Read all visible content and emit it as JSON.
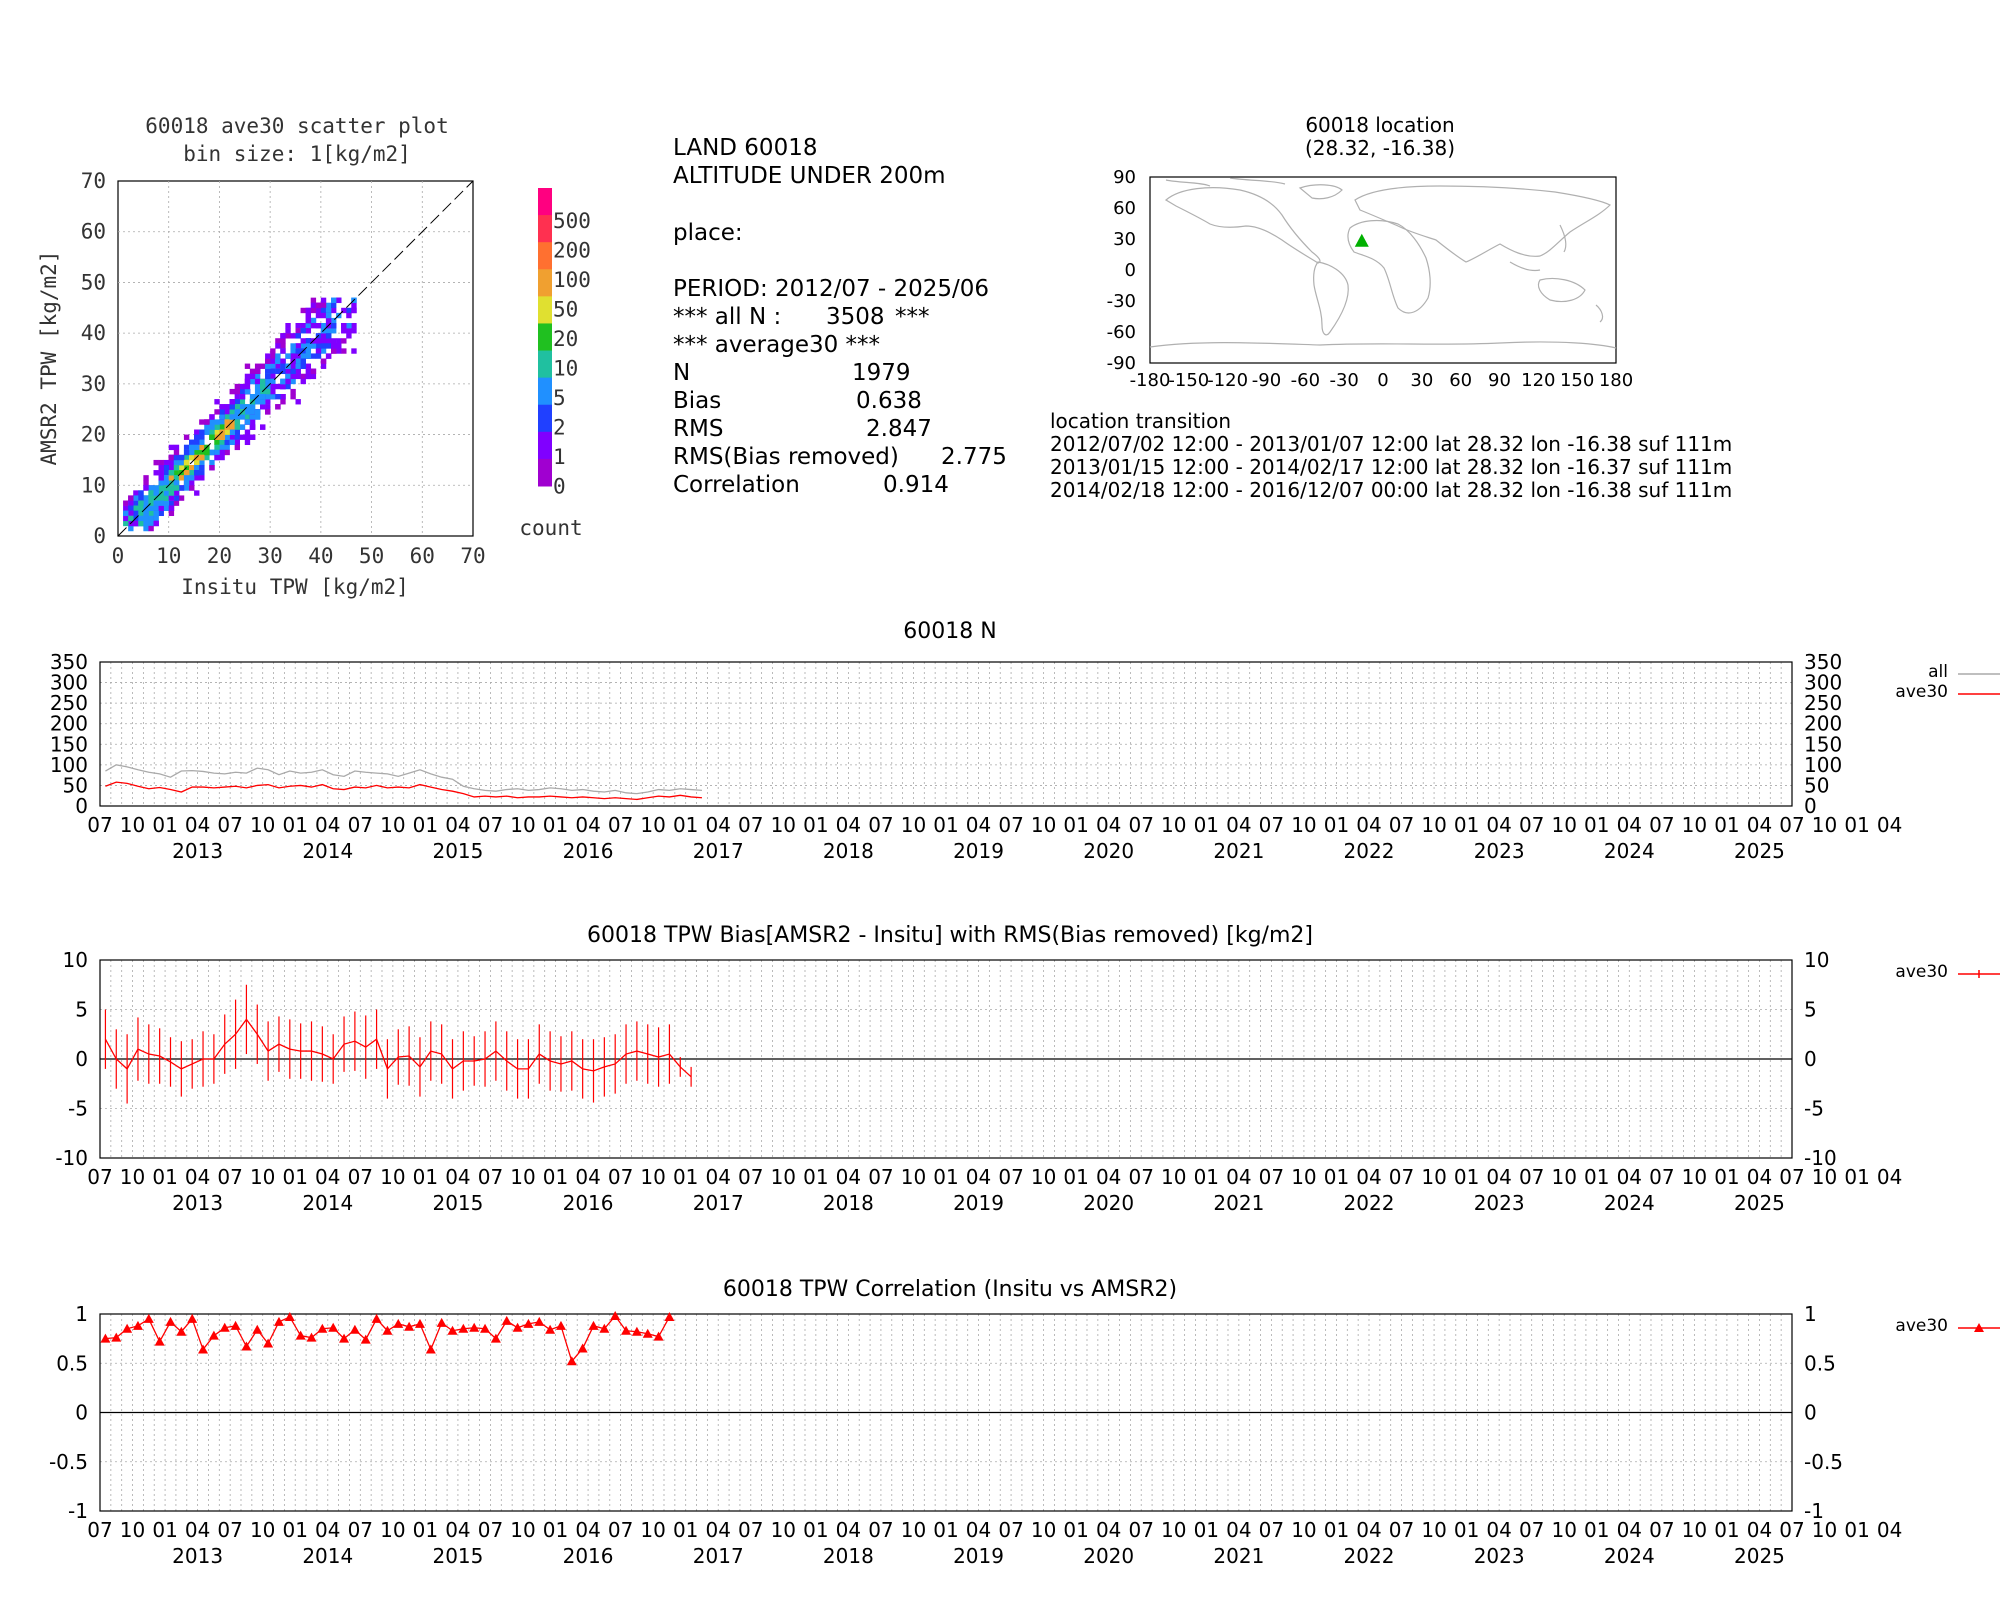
{
  "scatter": {
    "title": "60018 ave30 scatter plot",
    "subtitle": "bin size: 1[kg/m2]",
    "xlabel": "Insitu TPW [kg/m2]",
    "ylabel": "AMSR2 TPW [kg/m2]",
    "ticks": [
      "0",
      "10",
      "20",
      "30",
      "40",
      "50",
      "60",
      "70"
    ],
    "colorbar": {
      "labels": [
        "500",
        "200",
        "100",
        "50",
        "20",
        "10",
        "5",
        "2",
        "1",
        "0"
      ],
      "colors": [
        "#ff0080",
        "#ff3050",
        "#ff7030",
        "#f0a030",
        "#e0e030",
        "#20c020",
        "#20c0a0",
        "#2090ff",
        "#2040ff",
        "#8000ff",
        "#a000d0"
      ],
      "title": "count"
    }
  },
  "info": {
    "line1": "LAND 60018",
    "line2": "ALTITUDE UNDER 200m",
    "line3": "place:",
    "period": "PERIOD: 2012/07 - 2025/06",
    "alln_label": "*** all N :",
    "alln_value": "3508",
    "alln_end": "***",
    "avg": "*** average30 ***",
    "stats": [
      {
        "label": "N",
        "value": "1979"
      },
      {
        "label": "Bias",
        "value": "0.638"
      },
      {
        "label": "RMS",
        "value": "2.847"
      },
      {
        "label": "RMS(Bias removed)",
        "value": "2.775"
      },
      {
        "label": "Correlation",
        "value": "0.914"
      }
    ]
  },
  "location": {
    "title": "60018 location",
    "coords": "(28.32, -16.38)",
    "lat": 28.32,
    "lon": -16.38,
    "xticks": [
      "-180",
      "-150",
      "-120",
      "-90",
      "-60",
      "-30",
      "0",
      "30",
      "60",
      "90",
      "120",
      "150",
      "180"
    ],
    "yticks": [
      "90",
      "60",
      "30",
      "0",
      "-30",
      "-60",
      "-90"
    ],
    "marker_color": "#00b000",
    "transition_title": "location transition",
    "transitions": [
      "2012/07/02 12:00 - 2013/01/07 12:00 lat 28.32 lon -16.38 suf 111m",
      "2013/01/15 12:00 - 2014/02/17 12:00 lat 28.32 lon -16.37 suf 111m",
      "2014/02/18 12:00 - 2016/12/07 00:00 lat 28.32 lon -16.38 suf 111m"
    ]
  },
  "timeaxis": {
    "months": [
      "07",
      "10",
      "01",
      "04",
      "07",
      "10",
      "01",
      "04",
      "07",
      "10",
      "01",
      "04",
      "07",
      "10",
      "01",
      "04",
      "07",
      "10",
      "01",
      "04",
      "07",
      "10",
      "01",
      "04",
      "07",
      "10",
      "01",
      "04",
      "07",
      "10",
      "01",
      "04",
      "07",
      "10",
      "01",
      "04",
      "07",
      "10",
      "01",
      "04",
      "07",
      "10",
      "01",
      "04",
      "07",
      "10",
      "01",
      "04",
      "07",
      "10",
      "01",
      "04",
      "07",
      "10",
      "01",
      "04"
    ],
    "years": [
      "2013",
      "2014",
      "2015",
      "2016",
      "2017",
      "2018",
      "2019",
      "2020",
      "2021",
      "2022",
      "2023",
      "2024",
      "2025"
    ]
  },
  "chart_data": [
    {
      "type": "line",
      "title": "60018 N",
      "x_start": "2012-07",
      "x_end": "2025-06",
      "ylim": [
        0,
        350
      ],
      "yticks": [
        "350",
        "300",
        "250",
        "200",
        "150",
        "100",
        "50",
        "0"
      ],
      "series": [
        {
          "name": "all",
          "color": "#aaaaaa",
          "values": [
            85,
            100,
            95,
            88,
            82,
            78,
            70,
            85,
            86,
            84,
            80,
            78,
            82,
            80,
            92,
            88,
            76,
            85,
            80,
            82,
            88,
            76,
            72,
            85,
            82,
            80,
            78,
            72,
            80,
            88,
            78,
            70,
            65,
            48,
            42,
            38,
            36,
            40,
            42,
            38,
            40,
            44,
            42,
            38,
            40,
            36,
            34,
            38,
            32,
            30,
            34,
            40,
            38,
            42,
            40,
            38
          ]
        },
        {
          "name": "ave30",
          "color": "#ff0000",
          "values": [
            48,
            58,
            55,
            48,
            42,
            45,
            40,
            34,
            46,
            46,
            44,
            46,
            48,
            44,
            50,
            52,
            44,
            48,
            50,
            46,
            52,
            42,
            40,
            46,
            44,
            50,
            44,
            46,
            44,
            52,
            46,
            40,
            36,
            30,
            22,
            24,
            22,
            24,
            20,
            22,
            22,
            24,
            22,
            20,
            22,
            20,
            18,
            20,
            18,
            16,
            20,
            24,
            22,
            26,
            22,
            20
          ]
        }
      ]
    },
    {
      "type": "line",
      "title": "60018 TPW Bias[AMSR2 - Insitu] with RMS(Bias removed) [kg/m2]",
      "ylim": [
        -10,
        10
      ],
      "yticks": [
        "10",
        "5",
        "0",
        "-5",
        "-10"
      ],
      "series": [
        {
          "name": "ave30",
          "color": "#ff0000",
          "values": [
            2.0,
            0.0,
            -1.0,
            1.0,
            0.5,
            0.3,
            -0.3,
            -1.0,
            -0.5,
            0.0,
            0.0,
            1.5,
            2.5,
            4.0,
            2.5,
            0.8,
            1.5,
            1.0,
            0.8,
            0.8,
            0.5,
            0.0,
            1.5,
            1.8,
            1.2,
            2.0,
            -1.0,
            0.2,
            0.3,
            -0.8,
            0.8,
            0.5,
            -1.0,
            -0.2,
            -0.2,
            0.0,
            0.8,
            -0.2,
            -1.0,
            -1.0,
            0.5,
            -0.2,
            -0.5,
            -0.2,
            -1.0,
            -1.2,
            -0.8,
            -0.5,
            0.5,
            0.8,
            0.5,
            0.2,
            0.5,
            -0.8,
            -1.8
          ],
          "rms": [
            3.0,
            3.0,
            3.5,
            3.2,
            3.0,
            2.8,
            2.5,
            2.8,
            2.5,
            2.8,
            2.5,
            3.0,
            3.5,
            3.5,
            3.0,
            3.0,
            2.8,
            3.0,
            2.8,
            3.0,
            2.8,
            2.5,
            2.8,
            3.0,
            3.2,
            3.0,
            3.0,
            2.8,
            3.0,
            3.0,
            3.0,
            3.0,
            3.0,
            3.0,
            2.5,
            2.8,
            3.0,
            3.0,
            3.0,
            3.0,
            3.0,
            3.0,
            2.8,
            3.0,
            3.0,
            3.2,
            3.0,
            3.0,
            3.0,
            3.0,
            3.0,
            3.0,
            3.0,
            1.0,
            1.0
          ]
        }
      ]
    },
    {
      "type": "line",
      "title": "60018 TPW Correlation (Insitu vs AMSR2)",
      "ylim": [
        -1,
        1
      ],
      "yticks": [
        "1",
        "0.5",
        "0",
        "-0.5",
        "-1"
      ],
      "series": [
        {
          "name": "ave30",
          "color": "#ff0000",
          "values": [
            0.75,
            0.76,
            0.85,
            0.88,
            0.95,
            0.72,
            0.92,
            0.82,
            0.95,
            0.64,
            0.78,
            0.86,
            0.88,
            0.67,
            0.84,
            0.7,
            0.92,
            0.97,
            0.78,
            0.76,
            0.85,
            0.86,
            0.75,
            0.84,
            0.74,
            0.95,
            0.83,
            0.9,
            0.87,
            0.9,
            0.64,
            0.91,
            0.83,
            0.85,
            0.86,
            0.85,
            0.75,
            0.93,
            0.86,
            0.9,
            0.92,
            0.84,
            0.88,
            0.52,
            0.65,
            0.88,
            0.85,
            0.98,
            0.83,
            0.82,
            0.8,
            0.77,
            0.97
          ]
        }
      ]
    }
  ]
}
